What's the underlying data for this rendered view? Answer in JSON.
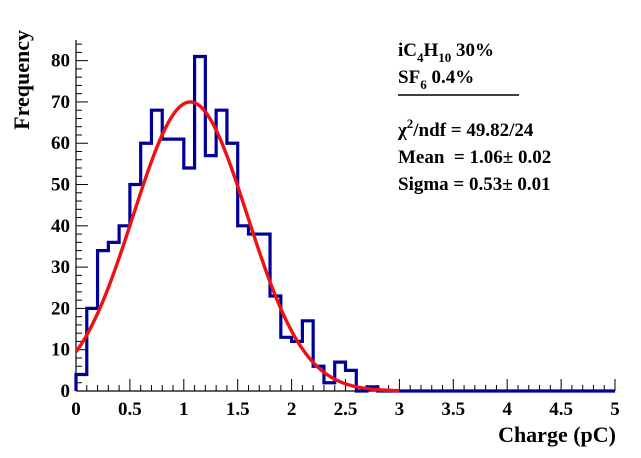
{
  "chart_data": {
    "type": "histogram",
    "xlabel": "Charge (pC)",
    "ylabel": "Frequency",
    "xlim": [
      0,
      5
    ],
    "ylim": [
      0,
      85
    ],
    "x_ticks": [
      "0",
      "0.5",
      "1",
      "1.5",
      "2",
      "2.5",
      "3",
      "3.5",
      "4",
      "4.5",
      "5"
    ],
    "y_ticks": [
      "0",
      "10",
      "20",
      "30",
      "40",
      "50",
      "60",
      "70",
      "80"
    ],
    "bin_width": 0.1,
    "bin_edges_start": 0,
    "histogram_color": "#000099",
    "fit_color": "#ee1111",
    "counts": [
      4,
      20,
      34,
      36,
      40,
      50,
      60,
      68,
      61,
      61,
      54,
      81,
      57,
      68,
      60,
      40,
      38,
      38,
      23,
      13,
      12,
      17,
      6,
      2,
      7,
      5,
      0,
      1,
      0,
      0,
      0,
      0,
      0,
      0,
      0,
      0,
      0,
      0,
      0,
      0,
      0,
      0,
      0,
      0,
      0,
      0,
      0,
      0,
      0,
      0
    ],
    "fit": {
      "function": "gaus",
      "constant": 70,
      "mean": 1.06,
      "sigma": 0.53,
      "x_range": [
        0,
        3
      ]
    },
    "legend": {
      "gas_line1": {
        "prefix": "iC",
        "sub1": "4",
        "mid": "H",
        "sub2": "10",
        "suffix": " 30%"
      },
      "gas_line2": {
        "prefix": "SF",
        "sub": "6",
        "suffix": " 0.4%"
      },
      "chi2": {
        "symbol": "χ",
        "sup": "2",
        "rest": "/ndf = 49.82/24"
      },
      "mean": "Mean  = 1.06± 0.02",
      "sigma": "Sigma = 0.53± 0.01"
    }
  }
}
